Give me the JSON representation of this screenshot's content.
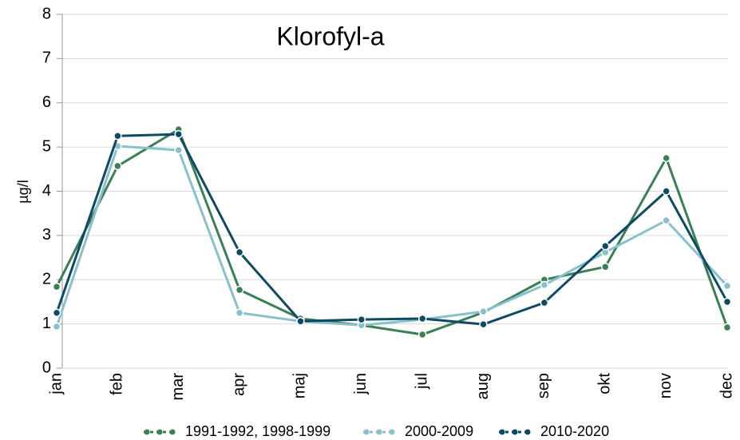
{
  "chart_data": {
    "type": "line",
    "title": "Klorofyl-a",
    "y_label": "µg/l",
    "categories": [
      "jan",
      "feb",
      "mar",
      "apr",
      "maj",
      "jun",
      "jul",
      "aug",
      "sep",
      "okt",
      "nov",
      "dec"
    ],
    "series": [
      {
        "name": "1991-1992, 1998-1999",
        "color": "#3b7f54",
        "values": [
          1.84,
          4.57,
          5.4,
          1.77,
          1.12,
          0.97,
          0.76,
          1.26,
          2.0,
          2.29,
          4.75,
          0.92
        ]
      },
      {
        "name": "2000-2009",
        "color": "#88c0cc",
        "values": [
          0.94,
          5.02,
          4.93,
          1.25,
          1.06,
          0.97,
          1.1,
          1.28,
          1.88,
          2.62,
          3.34,
          1.86
        ]
      },
      {
        "name": "2010-2020",
        "color": "#0e4a63",
        "values": [
          1.25,
          5.25,
          5.29,
          2.62,
          1.06,
          1.1,
          1.12,
          0.99,
          1.48,
          2.76,
          4.0,
          1.5
        ]
      }
    ],
    "ylim": [
      0,
      8
    ],
    "yticks": [
      0,
      1,
      2,
      3,
      4,
      5,
      6,
      7,
      8
    ],
    "grid": true,
    "legend": "bottom"
  }
}
